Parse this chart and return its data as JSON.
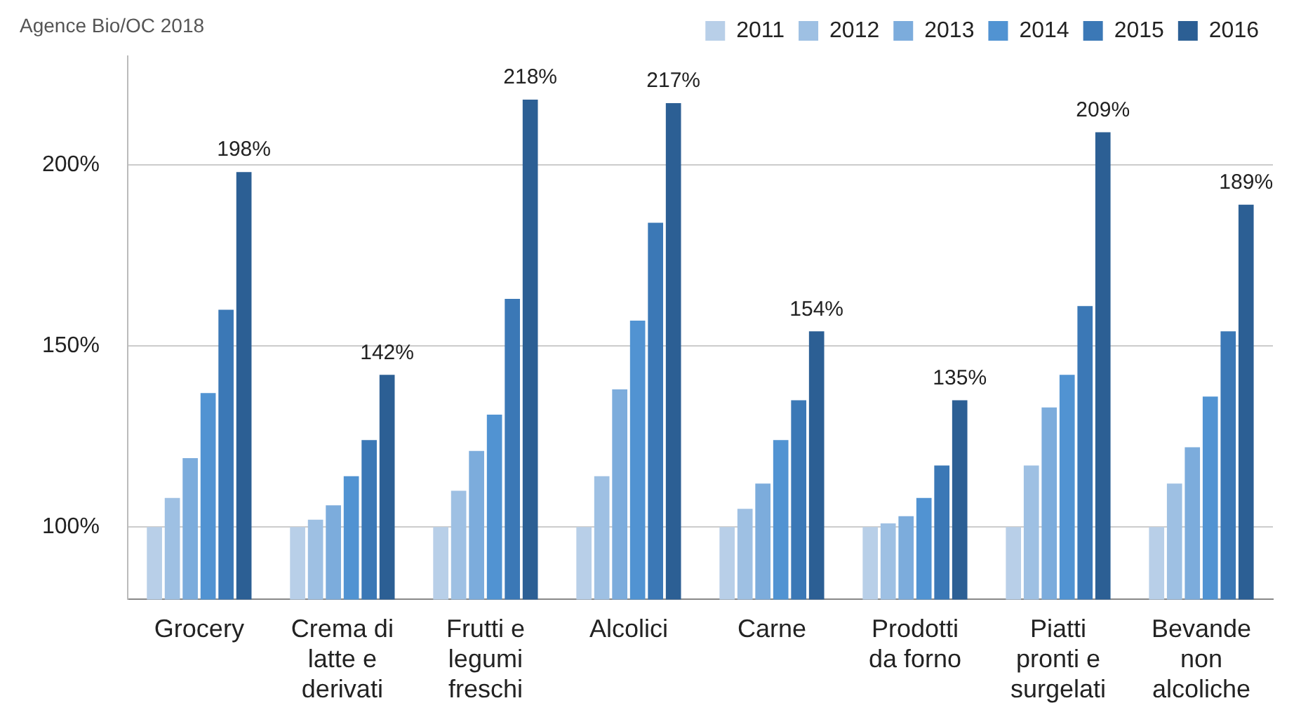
{
  "chart_data": {
    "type": "bar",
    "categories": [
      "Grocery",
      "Crema di latte e derivati",
      "Frutti e legumi freschi",
      "Alcolici",
      "Carne",
      "Prodotti da forno",
      "Piatti pronti e surgelati",
      "Bevande non alcoliche"
    ],
    "series": [
      {
        "name": "2011",
        "color": "#b8cfe8",
        "values": [
          100,
          100,
          100,
          100,
          100,
          100,
          100,
          100
        ]
      },
      {
        "name": "2012",
        "color": "#9ec0e3",
        "values": [
          108,
          102,
          110,
          114,
          105,
          101,
          117,
          112
        ]
      },
      {
        "name": "2013",
        "color": "#7cacdc",
        "values": [
          119,
          106,
          121,
          138,
          112,
          103,
          133,
          122
        ]
      },
      {
        "name": "2014",
        "color": "#5193d2",
        "values": [
          137,
          114,
          131,
          157,
          124,
          108,
          142,
          136
        ]
      },
      {
        "name": "2015",
        "color": "#3b78b6",
        "values": [
          160,
          124,
          163,
          184,
          135,
          117,
          161,
          154
        ]
      },
      {
        "name": "2016",
        "color": "#2c5f94",
        "values": [
          198,
          142,
          218,
          217,
          154,
          135,
          209,
          189
        ],
        "value_labels": [
          "198%",
          "142%",
          "218%",
          "217%",
          "154%",
          "135%",
          "209%",
          "189%"
        ]
      }
    ],
    "ylim": [
      80,
      230
    ],
    "yticks": [
      {
        "value": 100,
        "label": "100%"
      },
      {
        "value": 150,
        "label": "150%"
      },
      {
        "value": 200,
        "label": "200%"
      }
    ],
    "grid": "y",
    "legend": "top right",
    "annotations": [
      "Agence Bio/OC 2018"
    ]
  }
}
